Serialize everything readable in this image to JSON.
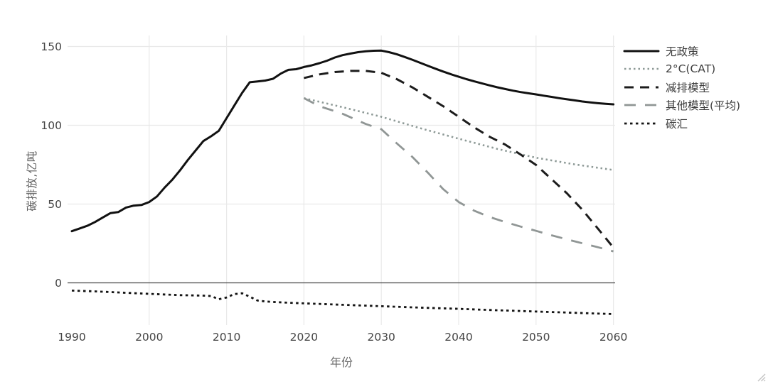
{
  "page": {
    "background": "#ffffff"
  },
  "colors": {
    "grid": "#e9e9e9",
    "zero_line": "#444444",
    "tick_text": "#454545",
    "axis_title_text": "#6a6a6a",
    "legend_text": "#3d3d3d",
    "resize_grip": "#c4c4c4"
  },
  "chart_data": {
    "type": "line",
    "title": "",
    "xlabel": "年份",
    "ylabel": "碳排放,亿吨",
    "xlim": [
      1990,
      2060
    ],
    "ylim": [
      -25,
      155
    ],
    "x_ticks": [
      1990,
      2000,
      2010,
      2020,
      2030,
      2040,
      2050,
      2060
    ],
    "y_ticks": [
      0,
      50,
      100,
      150
    ],
    "grid": true,
    "zero_line": true,
    "legend_position": "right",
    "series": [
      {
        "name": "无政策",
        "color": "#111111",
        "line_style": "solid",
        "points": [
          [
            1990,
            32.8
          ],
          [
            1991,
            34.5
          ],
          [
            1992,
            36.2
          ],
          [
            1993,
            38.6
          ],
          [
            1994,
            41.5
          ],
          [
            1995,
            44.3
          ],
          [
            1996,
            44.9
          ],
          [
            1997,
            47.8
          ],
          [
            1998,
            49.0
          ],
          [
            1999,
            49.4
          ],
          [
            2000,
            51.3
          ],
          [
            2001,
            54.8
          ],
          [
            2002,
            60.5
          ],
          [
            2003,
            65.5
          ],
          [
            2004,
            71.5
          ],
          [
            2005,
            78.0
          ],
          [
            2006,
            84.0
          ],
          [
            2007,
            90.0
          ],
          [
            2008,
            93.0
          ],
          [
            2009,
            96.5
          ],
          [
            2010,
            104.5
          ],
          [
            2011,
            112.5
          ],
          [
            2012,
            120.5
          ],
          [
            2013,
            127.3
          ],
          [
            2014,
            127.8
          ],
          [
            2015,
            128.4
          ],
          [
            2016,
            129.5
          ],
          [
            2017,
            132.8
          ],
          [
            2018,
            135.2
          ],
          [
            2019,
            135.6
          ],
          [
            2020,
            137.0
          ],
          [
            2021,
            138.0
          ],
          [
            2022,
            139.4
          ],
          [
            2023,
            141.0
          ],
          [
            2024,
            143.0
          ],
          [
            2025,
            144.5
          ],
          [
            2026,
            145.5
          ],
          [
            2027,
            146.4
          ],
          [
            2028,
            147.0
          ],
          [
            2029,
            147.3
          ],
          [
            2030,
            147.4
          ],
          [
            2031,
            146.4
          ],
          [
            2032,
            145.1
          ],
          [
            2033,
            143.4
          ],
          [
            2034,
            141.6
          ],
          [
            2035,
            139.7
          ],
          [
            2036,
            137.8
          ],
          [
            2037,
            135.9
          ],
          [
            2038,
            134.1
          ],
          [
            2039,
            132.4
          ],
          [
            2040,
            130.8
          ],
          [
            2041,
            129.3
          ],
          [
            2042,
            127.9
          ],
          [
            2043,
            126.6
          ],
          [
            2044,
            125.3
          ],
          [
            2045,
            124.1
          ],
          [
            2046,
            123.0
          ],
          [
            2047,
            122.0
          ],
          [
            2048,
            121.1
          ],
          [
            2049,
            120.3
          ],
          [
            2050,
            119.6
          ],
          [
            2051,
            118.8
          ],
          [
            2052,
            118.0
          ],
          [
            2053,
            117.2
          ],
          [
            2054,
            116.5
          ],
          [
            2055,
            115.8
          ],
          [
            2056,
            115.1
          ],
          [
            2057,
            114.5
          ],
          [
            2058,
            114.0
          ],
          [
            2059,
            113.6
          ],
          [
            2060,
            113.3
          ]
        ]
      },
      {
        "name": "2°C(CAT)",
        "color": "#8e9a97",
        "line_style": "dot",
        "points": [
          [
            2020,
            117.2
          ],
          [
            2025,
            111.5
          ],
          [
            2030,
            105.4
          ],
          [
            2035,
            98.2
          ],
          [
            2040,
            91.5
          ],
          [
            2045,
            85.0
          ],
          [
            2050,
            79.4
          ],
          [
            2055,
            75.2
          ],
          [
            2060,
            71.6
          ]
        ]
      },
      {
        "name": "减排模型",
        "color": "#1c1c1c",
        "line_style": "dash",
        "points": [
          [
            2020,
            130.0
          ],
          [
            2022,
            132.3
          ],
          [
            2024,
            133.8
          ],
          [
            2026,
            134.5
          ],
          [
            2028,
            134.5
          ],
          [
            2030,
            133.3
          ],
          [
            2032,
            129.3
          ],
          [
            2034,
            124.1
          ],
          [
            2036,
            118.1
          ],
          [
            2038,
            112.1
          ],
          [
            2040,
            105.4
          ],
          [
            2042,
            98.7
          ],
          [
            2044,
            92.7
          ],
          [
            2046,
            87.8
          ],
          [
            2048,
            81.5
          ],
          [
            2050,
            74.8
          ],
          [
            2052,
            65.8
          ],
          [
            2054,
            56.8
          ],
          [
            2056,
            46.3
          ],
          [
            2058,
            34.4
          ],
          [
            2060,
            22.4
          ]
        ]
      },
      {
        "name": "其他模型(平均)",
        "color": "#909695",
        "line_style": "longdash",
        "points": [
          [
            2020,
            117.2
          ],
          [
            2022,
            112.1
          ],
          [
            2025,
            107.3
          ],
          [
            2028,
            100.8
          ],
          [
            2030,
            97.5
          ],
          [
            2032,
            88.5
          ],
          [
            2034,
            80.0
          ],
          [
            2036,
            70.0
          ],
          [
            2038,
            59.5
          ],
          [
            2040,
            51.3
          ],
          [
            2042,
            45.8
          ],
          [
            2044,
            41.8
          ],
          [
            2046,
            38.6
          ],
          [
            2048,
            35.7
          ],
          [
            2050,
            33.0
          ],
          [
            2052,
            30.2
          ],
          [
            2054,
            27.6
          ],
          [
            2056,
            25.1
          ],
          [
            2058,
            22.6
          ],
          [
            2060,
            20.0
          ]
        ]
      },
      {
        "name": "碳汇",
        "color": "#141414",
        "line_style": "densedot",
        "points": [
          [
            1990,
            -4.9
          ],
          [
            1993,
            -5.4
          ],
          [
            1996,
            -6.1
          ],
          [
            2000,
            -7.0
          ],
          [
            2004,
            -7.8
          ],
          [
            2007,
            -8.1
          ],
          [
            2008,
            -8.4
          ],
          [
            2009,
            -10.4
          ],
          [
            2010,
            -9.3
          ],
          [
            2011,
            -7.1
          ],
          [
            2012,
            -6.6
          ],
          [
            2013,
            -8.8
          ],
          [
            2014,
            -11.2
          ],
          [
            2015,
            -11.8
          ],
          [
            2016,
            -12.1
          ],
          [
            2018,
            -12.6
          ],
          [
            2020,
            -13.0
          ],
          [
            2025,
            -13.9
          ],
          [
            2030,
            -14.8
          ],
          [
            2035,
            -15.7
          ],
          [
            2040,
            -16.5
          ],
          [
            2045,
            -17.4
          ],
          [
            2050,
            -18.2
          ],
          [
            2055,
            -19.0
          ],
          [
            2060,
            -19.8
          ]
        ]
      }
    ]
  }
}
